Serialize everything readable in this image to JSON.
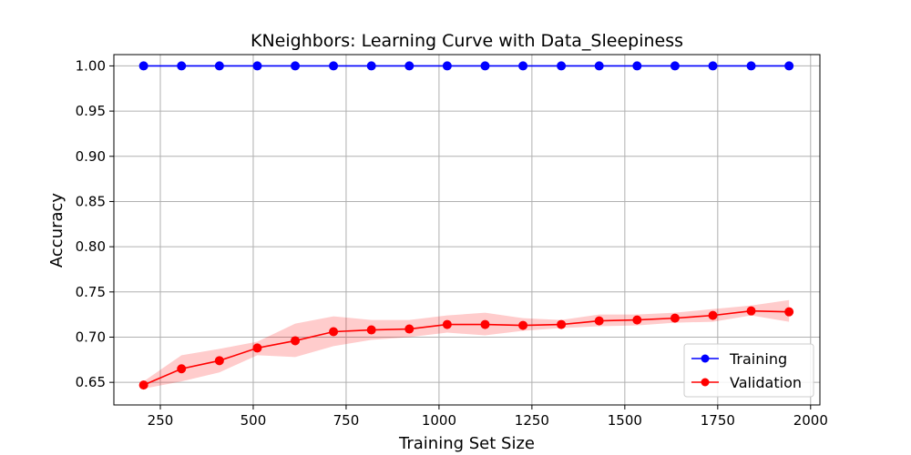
{
  "chart_data": {
    "type": "line",
    "title": "KNeighbors: Learning Curve with Data_Sleepiness",
    "xlabel": "Training Set Size",
    "ylabel": "Accuracy",
    "xlim": [
      125,
      2025
    ],
    "ylim": [
      0.625,
      1.0125
    ],
    "xticks": [
      250,
      500,
      750,
      1000,
      1250,
      1500,
      1750,
      2000
    ],
    "yticks": [
      0.65,
      0.7,
      0.75,
      0.8,
      0.85,
      0.9,
      0.95,
      1.0
    ],
    "xtick_labels": [
      "250",
      "500",
      "750",
      "1000",
      "1250",
      "1500",
      "1750",
      "2000"
    ],
    "ytick_labels": [
      "0.65",
      "0.70",
      "0.75",
      "0.80",
      "0.85",
      "0.90",
      "0.95",
      "1.00"
    ],
    "grid": true,
    "legend_position": "bottom-right",
    "x": [
      205,
      307,
      409,
      511,
      613,
      716,
      818,
      920,
      1022,
      1124,
      1226,
      1329,
      1431,
      1533,
      1635,
      1737,
      1840,
      1942
    ],
    "series": [
      {
        "name": "Training",
        "color": "#0000ff",
        "marker": "circle",
        "values": [
          1.0,
          1.0,
          1.0,
          1.0,
          1.0,
          1.0,
          1.0,
          1.0,
          1.0,
          1.0,
          1.0,
          1.0,
          1.0,
          1.0,
          1.0,
          1.0,
          1.0,
          1.0
        ]
      },
      {
        "name": "Validation",
        "color": "#ff0000",
        "marker": "circle",
        "band_color": "#ff0000",
        "values": [
          0.647,
          0.665,
          0.674,
          0.688,
          0.696,
          0.706,
          0.708,
          0.709,
          0.714,
          0.714,
          0.713,
          0.714,
          0.718,
          0.719,
          0.721,
          0.724,
          0.729,
          0.728
        ],
        "lower": [
          0.643,
          0.651,
          0.661,
          0.68,
          0.678,
          0.69,
          0.697,
          0.7,
          0.705,
          0.702,
          0.707,
          0.71,
          0.712,
          0.713,
          0.716,
          0.717,
          0.724,
          0.717
        ],
        "upper": [
          0.651,
          0.68,
          0.687,
          0.695,
          0.715,
          0.723,
          0.719,
          0.719,
          0.724,
          0.727,
          0.721,
          0.719,
          0.725,
          0.725,
          0.727,
          0.731,
          0.735,
          0.741
        ]
      }
    ]
  }
}
